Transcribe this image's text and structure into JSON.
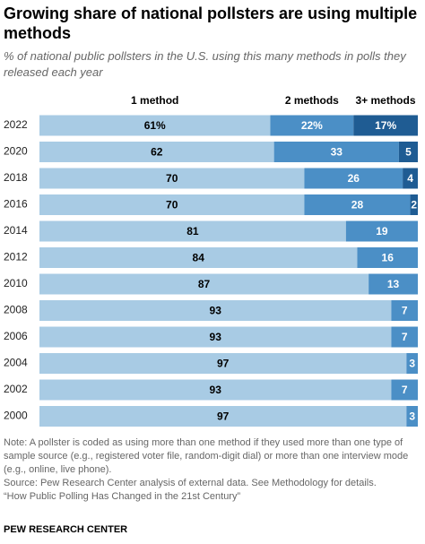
{
  "chart_data": {
    "type": "stacked-bar-horizontal",
    "title": "Growing share of national pollsters are using multiple methods",
    "subtitle": "% of national public pollsters in the U.S. using this many methods in polls they released each year",
    "categories": [
      "2022",
      "2020",
      "2018",
      "2016",
      "2014",
      "2012",
      "2010",
      "2008",
      "2006",
      "2004",
      "2002",
      "2000"
    ],
    "series": [
      {
        "name": "1 method",
        "color": "#a8cbe4",
        "values": [
          61,
          62,
          70,
          70,
          81,
          84,
          87,
          93,
          93,
          97,
          93,
          97
        ],
        "value_labels": [
          "61%",
          "62",
          "70",
          "70",
          "81",
          "84",
          "87",
          "93",
          "93",
          "97",
          "93",
          "97"
        ]
      },
      {
        "name": "2 methods",
        "color": "#4b8fc6",
        "values": [
          22,
          33,
          26,
          28,
          19,
          16,
          13,
          7,
          7,
          3,
          7,
          3
        ],
        "value_labels": [
          "22%",
          "33",
          "26",
          "28",
          "19",
          "16",
          "13",
          "7",
          "7",
          "3",
          "7",
          "3"
        ]
      },
      {
        "name": "3+ methods",
        "color": "#1f5c93",
        "values": [
          17,
          5,
          4,
          2,
          null,
          null,
          null,
          null,
          null,
          null,
          null,
          null
        ],
        "value_labels": [
          "17%",
          "5",
          "4",
          "2",
          null,
          null,
          null,
          null,
          null,
          null,
          null,
          null
        ]
      }
    ],
    "notes": [
      "Note: A pollster is coded as using more than one method if they used more than one type of sample source (e.g., registered voter file, random-digit dial) or more than one interview mode (e.g., online, live phone).",
      "Source: Pew Research Center analysis of external data. See Methodology for details.",
      "“How Public Polling Has Changed in the 21st Century”"
    ],
    "footer": "PEW RESEARCH CENTER"
  }
}
